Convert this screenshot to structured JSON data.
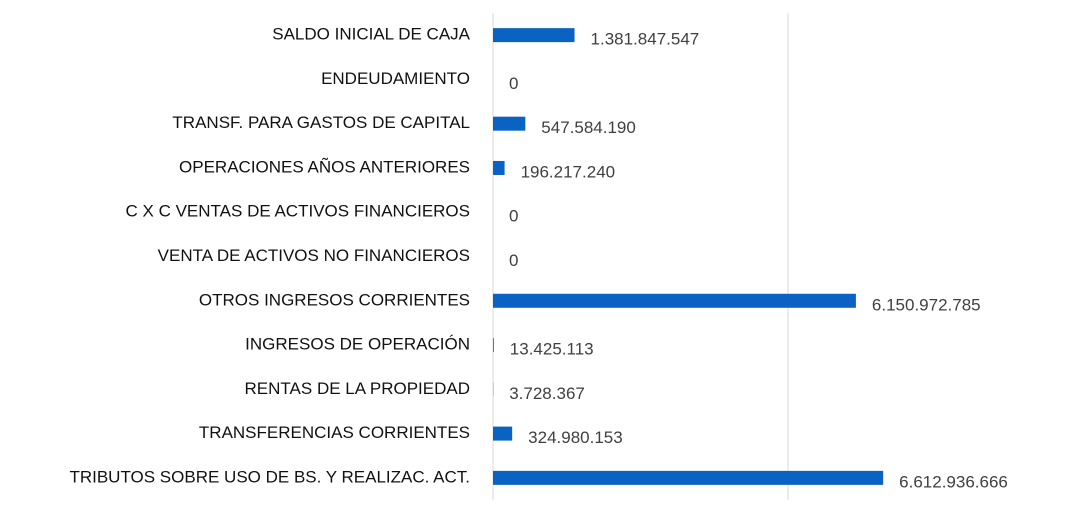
{
  "chart_data": {
    "type": "barh",
    "categories": [
      "SALDO INICIAL DE CAJA",
      "ENDEUDAMIENTO",
      "TRANSF. PARA GASTOS DE CAPITAL",
      "OPERACIONES AÑOS ANTERIORES",
      "C X C VENTAS DE ACTIVOS FINANCIEROS",
      "VENTA DE ACTIVOS NO FINANCIEROS",
      "OTROS INGRESOS CORRIENTES",
      "INGRESOS DE OPERACIÓN",
      "RENTAS DE LA PROPIEDAD",
      "TRANSFERENCIAS CORRIENTES",
      "TRIBUTOS SOBRE USO DE BS. Y  REALIZAC. ACT."
    ],
    "values": [
      1381847547,
      0,
      547584190,
      196217240,
      0,
      0,
      6150972785,
      13425113,
      3728367,
      324980153,
      6612936666
    ],
    "value_labels": [
      "1.381.847.547",
      "0",
      "547.584.190",
      "196.217.240",
      "0",
      "0",
      "6.150.972.785",
      "13.425.113",
      "3.728.367",
      "324.980.153",
      "6.612.936.666"
    ],
    "color": "#0a62c2",
    "xlim": [
      0,
      9000000000
    ],
    "xgrid": [
      0,
      5000000000
    ]
  }
}
